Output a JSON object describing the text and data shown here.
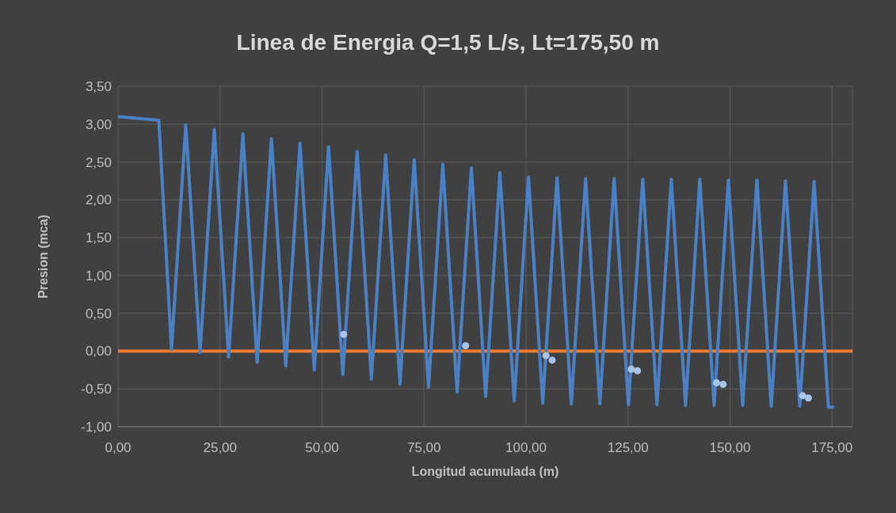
{
  "chart_data": {
    "type": "line",
    "title": "Linea de Energia Q=1,5 L/s, Lt=175,50 m",
    "xlabel": "Longitud acumulada (m)",
    "ylabel": "Presion (mca)",
    "xlim": [
      0,
      180
    ],
    "xticks": [
      {
        "value": 0,
        "label": "0,00"
      },
      {
        "value": 25,
        "label": "25,00"
      },
      {
        "value": 50,
        "label": "50,00"
      },
      {
        "value": 75,
        "label": "75,00"
      },
      {
        "value": 100,
        "label": "100,00"
      },
      {
        "value": 125,
        "label": "125,00"
      },
      {
        "value": 150,
        "label": "150,00"
      },
      {
        "value": 175,
        "label": "175,00"
      }
    ],
    "ylim": [
      -1,
      3.5
    ],
    "yticks": [
      {
        "value": -1,
        "label": "-1,00"
      },
      {
        "value": -0.5,
        "label": "-0,50"
      },
      {
        "value": 0,
        "label": "0,00"
      },
      {
        "value": 0.5,
        "label": "0,50"
      },
      {
        "value": 1,
        "label": "1,00"
      },
      {
        "value": 1.5,
        "label": "1,50"
      },
      {
        "value": 2,
        "label": "2,00"
      },
      {
        "value": 2.5,
        "label": "2,50"
      },
      {
        "value": 3,
        "label": "3,00"
      },
      {
        "value": 3.5,
        "label": "3,50"
      }
    ],
    "grid": true,
    "ref_lines": [
      {
        "axis": "y",
        "value": 0,
        "color": "#ed7d31"
      }
    ],
    "series": [
      {
        "color": "#4a80c6",
        "marker": "none",
        "line_style": "solid",
        "x": [
          0,
          10,
          13.1,
          16.6,
          20.1,
          23.6,
          27.1,
          30.6,
          34.1,
          37.6,
          41.1,
          44.6,
          48.1,
          51.6,
          55.1,
          58.6,
          62.1,
          65.6,
          69.1,
          72.6,
          76.1,
          79.6,
          83.1,
          86.6,
          90.1,
          93.6,
          97.1,
          100.6,
          104.1,
          107.6,
          111.1,
          114.6,
          118.1,
          121.6,
          125.1,
          128.6,
          132.1,
          135.6,
          139.1,
          142.6,
          146.1,
          149.6,
          153.1,
          156.6,
          160.1,
          163.6,
          167.1,
          170.6,
          174.1,
          175.5
        ],
        "values": [
          3.1,
          3.05,
          0.02,
          2.99,
          -0.02,
          2.93,
          -0.08,
          2.87,
          -0.15,
          2.81,
          -0.2,
          2.75,
          -0.25,
          2.7,
          -0.31,
          2.64,
          -0.37,
          2.59,
          -0.44,
          2.53,
          -0.48,
          2.47,
          -0.54,
          2.42,
          -0.6,
          2.36,
          -0.66,
          2.3,
          -0.69,
          2.29,
          -0.7,
          2.28,
          -0.7,
          2.28,
          -0.71,
          2.27,
          -0.71,
          2.27,
          -0.72,
          2.27,
          -0.72,
          2.26,
          -0.72,
          2.26,
          -0.73,
          2.25,
          -0.73,
          2.24,
          -0.74,
          -0.74
        ]
      },
      {
        "type": "scatter",
        "color": "#a9c4e8",
        "marker": "circle",
        "x": [
          55.3,
          85.2,
          104.9,
          106.4,
          125.8,
          127.3,
          146.7,
          148.3,
          167.8,
          169.2
        ],
        "values": [
          0.22,
          0.07,
          -0.06,
          -0.12,
          -0.24,
          -0.26,
          -0.42,
          -0.44,
          -0.59,
          -0.62
        ]
      }
    ]
  }
}
